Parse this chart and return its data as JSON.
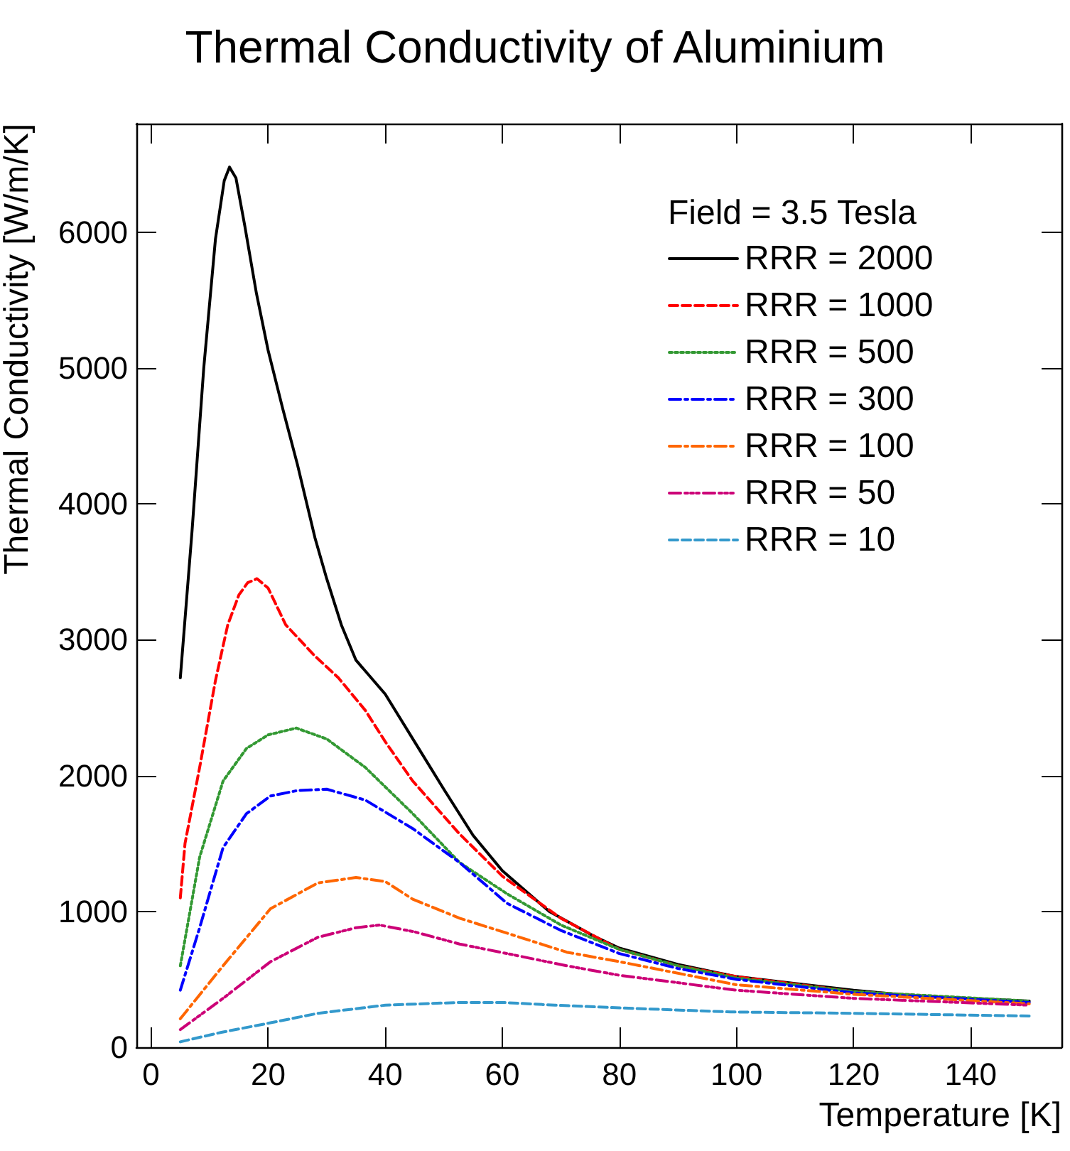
{
  "chart_data": {
    "type": "line",
    "title": "Thermal Conductivity of Aluminium",
    "xlabel": "Temperature [K]",
    "ylabel": "Thermal Conductivity [W/m/K]",
    "legend_title": "Field = 3.5 Tesla",
    "legend": "top right",
    "grid": false,
    "marker": "none",
    "xlim": [
      -2.5,
      155.5
    ],
    "xticks": [
      0,
      20,
      40,
      60,
      80,
      100,
      120,
      140
    ],
    "ylim": [
      0,
      6800
    ],
    "yticks": [
      0,
      1000,
      2000,
      3000,
      4000,
      5000,
      6000
    ],
    "series": [
      {
        "name": "RRR = 2000",
        "color": "#000000",
        "line_style": "solid",
        "x": [
          5,
          7,
          9,
          11,
          12.5,
          13.4,
          14.5,
          16,
          18,
          20,
          22.5,
          25,
          28,
          30,
          32.5,
          35,
          40,
          45,
          50,
          55,
          60,
          68,
          76,
          80,
          90,
          100,
          110,
          120,
          130,
          140,
          150
        ],
        "values": [
          2720,
          3800,
          5000,
          5950,
          6380,
          6480,
          6400,
          6050,
          5550,
          5130,
          4700,
          4290,
          3750,
          3450,
          3110,
          2850,
          2600,
          2250,
          1900,
          1560,
          1300,
          1000,
          810,
          730,
          610,
          520,
          470,
          420,
          380,
          360,
          340
        ]
      },
      {
        "name": "RRR = 1000",
        "color": "#ff0000",
        "line_style": "dashed",
        "x": [
          5,
          5.8,
          8.3,
          11,
          13.1,
          15,
          16.5,
          18.1,
          20,
          23,
          28,
          32,
          36.6,
          40,
          44.7,
          52.7,
          60,
          70,
          80,
          90,
          100,
          120,
          150
        ],
        "values": [
          1100,
          1500,
          2060,
          2700,
          3110,
          3330,
          3420,
          3450,
          3380,
          3110,
          2880,
          2720,
          2480,
          2250,
          1960,
          1570,
          1260,
          950,
          720,
          600,
          520,
          410,
          330
        ]
      },
      {
        "name": "RRR = 500",
        "color": "#339933",
        "line_style": "dotted",
        "x": [
          5,
          8.3,
          12.3,
          16.3,
          20,
          24.8,
          30,
          36.6,
          44.7,
          52.7,
          60.8,
          70,
          80,
          90,
          100,
          120,
          150
        ],
        "values": [
          600,
          1400,
          1960,
          2200,
          2300,
          2350,
          2270,
          2060,
          1720,
          1360,
          1130,
          900,
          720,
          600,
          510,
          410,
          340
        ]
      },
      {
        "name": "RRR = 300",
        "color": "#0000ff",
        "line_style": "dashdot",
        "x": [
          5,
          8.3,
          12.3,
          16.3,
          20.4,
          25,
          30,
          36.6,
          44.7,
          52.7,
          60.8,
          70,
          80,
          90,
          100,
          120,
          150
        ],
        "values": [
          420,
          880,
          1470,
          1720,
          1850,
          1890,
          1900,
          1820,
          1610,
          1360,
          1060,
          860,
          690,
          580,
          500,
          400,
          330
        ]
      },
      {
        "name": "RRR = 100",
        "color": "#ff6600",
        "line_style": "dashdot",
        "x": [
          5,
          12.3,
          20.4,
          28.5,
          35,
          40,
          44.7,
          52.7,
          60.8,
          71,
          80,
          100,
          120,
          150
        ],
        "values": [
          210,
          600,
          1020,
          1210,
          1250,
          1220,
          1090,
          950,
          840,
          700,
          630,
          460,
          390,
          320
        ]
      },
      {
        "name": "RRR = 50",
        "color": "#cc0077",
        "line_style": "dashdotdot",
        "x": [
          5,
          12.3,
          20.4,
          28.5,
          35,
          39,
          45,
          52.7,
          60.8,
          71,
          80,
          100,
          120,
          150
        ],
        "values": [
          130,
          360,
          630,
          810,
          880,
          900,
          850,
          760,
          690,
          600,
          530,
          420,
          360,
          310
        ]
      },
      {
        "name": "RRR = 10",
        "color": "#3399cc",
        "line_style": "dashed",
        "x": [
          5,
          12,
          20.4,
          28.5,
          40,
          52.7,
          60,
          69,
          80,
          99,
          120,
          150
        ],
        "values": [
          40,
          110,
          180,
          250,
          310,
          330,
          330,
          310,
          290,
          260,
          250,
          230
        ]
      }
    ]
  }
}
